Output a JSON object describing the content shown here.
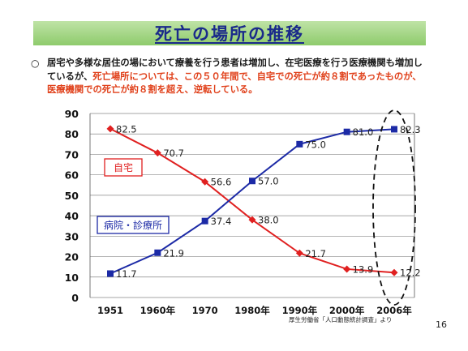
{
  "header": {
    "title": "死亡の場所の推移"
  },
  "intro": {
    "bullet": "○",
    "text_normal": "居宅や多様な居住の場において療養を行う患者は増加し、在宅医療を行う医療機関も増加しているが、",
    "text_highlight": "死亡場所については、この５０年間で、自宅での死亡が約８割であったものが、医療機関での死亡が約８割を超え、逆転している。"
  },
  "footer": {
    "source": "厚生労働省「人口動態統計調査」より",
    "page_number": "16"
  },
  "colors": {
    "home": "#e02020",
    "hospital": "#1c2aa6",
    "title_bg": "#9fd27e",
    "title_text": "#1a2a8a",
    "highlight_text": "#e0401a"
  },
  "chart_data": {
    "type": "line",
    "categories": [
      "1951",
      "1960年",
      "1970",
      "1980年",
      "1990年",
      "2000年",
      "2006年"
    ],
    "ylim": [
      0,
      90
    ],
    "yticks": [
      0,
      10,
      20,
      30,
      40,
      50,
      60,
      70,
      80,
      90
    ],
    "grid": true,
    "series": [
      {
        "name": "自宅",
        "marker": "diamond",
        "color": "#e02020",
        "values": [
          82.5,
          70.7,
          56.6,
          38.0,
          21.7,
          13.9,
          12.2
        ],
        "labels": [
          "82.5",
          "70.7",
          "56.6",
          "38.0",
          "21.7",
          "13.9",
          "12.2"
        ]
      },
      {
        "name": "病院・診療所",
        "marker": "square",
        "color": "#1c2aa6",
        "values": [
          11.7,
          21.9,
          37.4,
          57.0,
          75.0,
          81.0,
          82.3
        ],
        "labels": [
          "11.7",
          "21.9",
          "37.4",
          "57.0",
          "75.0",
          "81.0",
          "82.3"
        ]
      }
    ],
    "annotation": "dashed ellipse around 2006年 values"
  }
}
